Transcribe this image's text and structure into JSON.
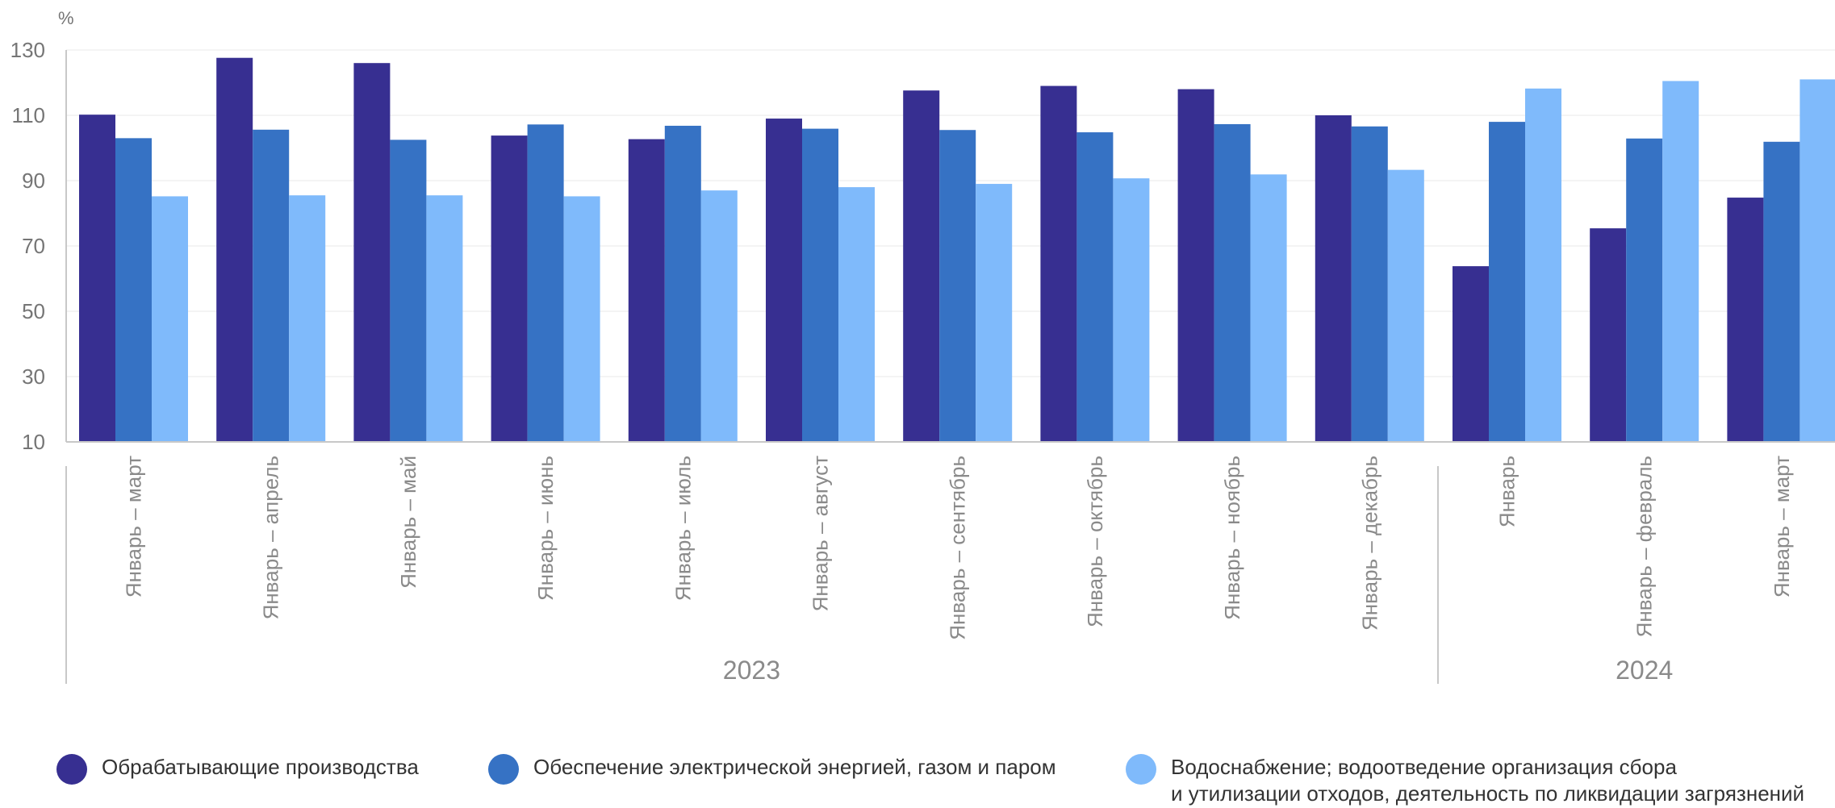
{
  "chart_data": {
    "type": "bar",
    "unit": "%",
    "ylim": [
      10,
      130
    ],
    "yticks": [
      10,
      30,
      50,
      70,
      90,
      110,
      130
    ],
    "grid": true,
    "categories": [
      "Январь – март",
      "Январь – апрель",
      "Январь – май",
      "Январь – июнь",
      "Январь – июль",
      "Январь – август",
      "Январь – сентябрь",
      "Январь – октябрь",
      "Январь – ноябрь",
      "Январь – декабрь",
      "Январь",
      "Январь – февраль",
      "Январь – март"
    ],
    "groups": [
      {
        "label": "2023",
        "from": 0,
        "to": 9
      },
      {
        "label": "2024",
        "from": 10,
        "to": 12
      }
    ],
    "series": [
      {
        "name": "Обрабатывающие производства",
        "color": "#372F91",
        "values": [
          110.2,
          127.6,
          126.0,
          103.8,
          102.7,
          109.0,
          117.6,
          119.0,
          118.0,
          110.0,
          63.8,
          75.4,
          84.8
        ]
      },
      {
        "name": "Обеспечение электрической энергией, газом и паром",
        "color": "#3672C4",
        "values": [
          103.0,
          105.6,
          102.5,
          107.2,
          106.8,
          105.9,
          105.5,
          104.8,
          107.3,
          106.6,
          108.0,
          102.9,
          101.9
        ]
      },
      {
        "name": "Водоснабжение; водоотведение организация сбора и утилизации отходов, деятельность по ликвидации загрязнений",
        "color": "#7FBAFB",
        "values": [
          85.2,
          85.5,
          85.5,
          85.2,
          87.0,
          88.0,
          89.0,
          90.7,
          91.9,
          93.3,
          118.2,
          120.5,
          121.0
        ]
      }
    ],
    "legend_position": "bottom"
  },
  "legend": {
    "items": [
      {
        "lines": [
          "Обрабатывающие производства"
        ],
        "color": "#372F91"
      },
      {
        "lines": [
          "Обеспечение электрической энергией, газом и паром"
        ],
        "color": "#3672C4"
      },
      {
        "lines": [
          "Водоснабжение; водоотведение организация сбора",
          "и утилизации отходов, деятельность по ликвидации загрязнений"
        ],
        "color": "#7FBAFB"
      }
    ]
  }
}
